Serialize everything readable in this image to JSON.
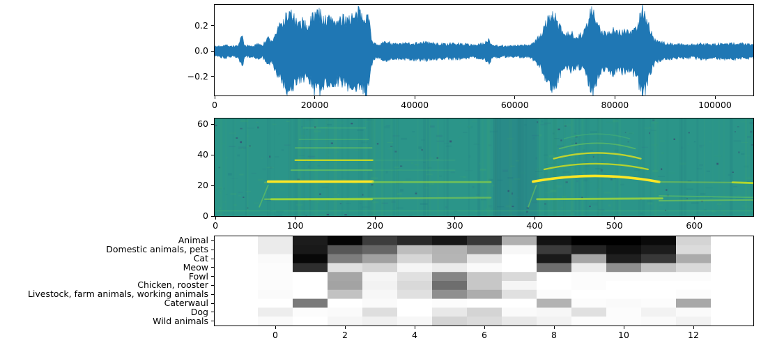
{
  "figure": {
    "background": "#ffffff",
    "description": "Three stacked audio-analysis panels: raw waveform, STFT spectrogram, and animal-sound class probability heatmap"
  },
  "colors": {
    "waveform_line": "#1f77b4",
    "axis_text": "#000000",
    "spectrogram_background": "#2b9589",
    "spectrogram_colormap": "viridis",
    "heatmap_colormap": "gray_r"
  },
  "chart_data": [
    {
      "id": "waveform",
      "type": "line",
      "title": "",
      "xlabel": "",
      "ylabel": "",
      "x_range": [
        0,
        107660
      ],
      "y_range": [
        -0.349,
        0.364
      ],
      "grid": false,
      "legend": "none",
      "line_color": "#1f77b4",
      "xticks": [
        {
          "v": 0,
          "label": "0"
        },
        {
          "v": 20000,
          "label": "20000"
        },
        {
          "v": 40000,
          "label": "40000"
        },
        {
          "v": 60000,
          "label": "60000"
        },
        {
          "v": 80000,
          "label": "80000"
        },
        {
          "v": 100000,
          "label": "100000"
        }
      ],
      "yticks": [
        {
          "v": 0.2,
          "label": "0.2"
        },
        {
          "v": 0.0,
          "label": "0.0"
        },
        {
          "v": -0.2,
          "label": "−0.2"
        }
      ],
      "envelope": [
        [
          0,
          0.035
        ],
        [
          2000,
          0.05
        ],
        [
          3500,
          0.04
        ],
        [
          4800,
          0.045
        ],
        [
          5500,
          0.13
        ],
        [
          5900,
          0.045
        ],
        [
          7500,
          0.04
        ],
        [
          9000,
          0.06
        ],
        [
          9600,
          0.05
        ],
        [
          10800,
          0.11
        ],
        [
          11400,
          0.07
        ],
        [
          12000,
          0.13
        ],
        [
          12800,
          0.19
        ],
        [
          13600,
          0.23
        ],
        [
          14600,
          0.29
        ],
        [
          15300,
          0.3
        ],
        [
          16000,
          0.25
        ],
        [
          16800,
          0.2
        ],
        [
          17600,
          0.24
        ],
        [
          18400,
          0.19
        ],
        [
          19200,
          0.25
        ],
        [
          20000,
          0.3
        ],
        [
          20800,
          0.31
        ],
        [
          21600,
          0.27
        ],
        [
          22400,
          0.24
        ],
        [
          23200,
          0.27
        ],
        [
          24000,
          0.25
        ],
        [
          24800,
          0.23
        ],
        [
          25600,
          0.25
        ],
        [
          26400,
          0.26
        ],
        [
          27200,
          0.28
        ],
        [
          28000,
          0.26
        ],
        [
          28800,
          0.31
        ],
        [
          29600,
          0.28
        ],
        [
          30300,
          0.31
        ],
        [
          30900,
          0.24
        ],
        [
          31300,
          0.12
        ],
        [
          31800,
          0.06
        ],
        [
          33000,
          0.055
        ],
        [
          34500,
          0.075
        ],
        [
          36000,
          0.055
        ],
        [
          38000,
          0.06
        ],
        [
          40000,
          0.065
        ],
        [
          42000,
          0.07
        ],
        [
          44000,
          0.06
        ],
        [
          46000,
          0.055
        ],
        [
          48000,
          0.06
        ],
        [
          50000,
          0.055
        ],
        [
          52000,
          0.05
        ],
        [
          54000,
          0.06
        ],
        [
          54800,
          0.1
        ],
        [
          55400,
          0.05
        ],
        [
          57000,
          0.045
        ],
        [
          59000,
          0.04
        ],
        [
          61000,
          0.045
        ],
        [
          63000,
          0.05
        ],
        [
          64200,
          0.08
        ],
        [
          65200,
          0.13
        ],
        [
          66200,
          0.22
        ],
        [
          67300,
          0.3
        ],
        [
          68000,
          0.27
        ],
        [
          68900,
          0.19
        ],
        [
          70000,
          0.12
        ],
        [
          71200,
          0.145
        ],
        [
          72400,
          0.12
        ],
        [
          73600,
          0.14
        ],
        [
          74500,
          0.21
        ],
        [
          75400,
          0.335
        ],
        [
          76200,
          0.24
        ],
        [
          77200,
          0.15
        ],
        [
          78400,
          0.155
        ],
        [
          79600,
          0.17
        ],
        [
          80800,
          0.155
        ],
        [
          82000,
          0.165
        ],
        [
          83200,
          0.15
        ],
        [
          84300,
          0.19
        ],
        [
          85500,
          0.335
        ],
        [
          86300,
          0.27
        ],
        [
          87100,
          0.16
        ],
        [
          87900,
          0.09
        ],
        [
          89000,
          0.07
        ],
        [
          90500,
          0.06
        ],
        [
          92500,
          0.055
        ],
        [
          95000,
          0.05
        ],
        [
          97500,
          0.06
        ],
        [
          100000,
          0.055
        ],
        [
          102500,
          0.06
        ],
        [
          105000,
          0.06
        ],
        [
          107660,
          0.05
        ]
      ]
    },
    {
      "id": "spectrogram",
      "type": "heatmap",
      "title": "",
      "xlabel": "",
      "ylabel": "",
      "colormap": "viridis",
      "x_range": [
        -1,
        674
      ],
      "y_range": [
        0,
        63.7
      ],
      "xticks": [
        {
          "v": 0,
          "label": "0"
        },
        {
          "v": 100,
          "label": "100"
        },
        {
          "v": 200,
          "label": "200"
        },
        {
          "v": 300,
          "label": "300"
        },
        {
          "v": 400,
          "label": "400"
        },
        {
          "v": 500,
          "label": "500"
        },
        {
          "v": 600,
          "label": "600"
        }
      ],
      "yticks": [
        {
          "v": 0,
          "label": "0"
        },
        {
          "v": 20,
          "label": "20"
        },
        {
          "v": 40,
          "label": "40"
        },
        {
          "v": 60,
          "label": "60"
        }
      ],
      "silent_gap": {
        "x0": 348,
        "x1": 403
      },
      "ridges": [
        {
          "x0": 62,
          "x1": 345,
          "y0": 11,
          "y1": 12,
          "w": 2.4,
          "c": "#8ed645",
          "o": 0.55
        },
        {
          "x0": 70,
          "x1": 196,
          "y0": 11,
          "y1": 11,
          "w": 2.8,
          "c": "#a8db34",
          "o": 0.85
        },
        {
          "x0": 62,
          "x1": 345,
          "y0": 22,
          "y1": 22,
          "w": 2.2,
          "c": "#a8dc32",
          "o": 0.3
        },
        {
          "x0": 66,
          "x1": 197,
          "y0": 22.5,
          "y1": 22.5,
          "w": 3.6,
          "c": "#fde725",
          "o": 1
        },
        {
          "x0": 95,
          "x1": 196,
          "y0": 30,
          "y1": 30,
          "w": 2.0,
          "c": "#7ad151",
          "o": 0.6
        },
        {
          "x0": 100,
          "x1": 197,
          "y0": 36.5,
          "y1": 36.5,
          "w": 2.4,
          "c": "#d8e219",
          "o": 0.85
        },
        {
          "x0": 100,
          "x1": 196,
          "y0": 44.5,
          "y1": 44.5,
          "w": 1.8,
          "c": "#7ad151",
          "o": 0.5
        },
        {
          "x0": 105,
          "x1": 192,
          "y0": 50,
          "y1": 50,
          "w": 1.6,
          "c": "#5ec962",
          "o": 0.4
        },
        {
          "x0": 110,
          "x1": 188,
          "y0": 57.5,
          "y1": 57.5,
          "w": 1.6,
          "c": "#5ec962",
          "o": 0.32
        },
        {
          "x0": 197,
          "x1": 345,
          "y0": 22.3,
          "y1": 22.3,
          "w": 2.6,
          "c": "#8ed645",
          "o": 0.55
        },
        {
          "x0": 197,
          "x1": 300,
          "y0": 30,
          "y1": 30,
          "w": 1.5,
          "c": "#5ec962",
          "o": 0.2
        },
        {
          "x0": 197,
          "x1": 300,
          "y0": 36.5,
          "y1": 36.5,
          "w": 1.5,
          "c": "#5ec962",
          "o": 0.18
        },
        {
          "x0": 55,
          "x1": 66,
          "y0": 6,
          "y1": 20,
          "w": 1.8,
          "c": "#7ad151",
          "o": 0.5
        },
        {
          "x0": 392,
          "x1": 402,
          "y0": 6,
          "y1": 20,
          "w": 1.8,
          "c": "#7ad151",
          "o": 0.5
        },
        {
          "x0": 398,
          "x1": 556,
          "y0": 22.5,
          "ym": 26.2,
          "y1": 22.3,
          "w": 3.6,
          "c": "#fde725",
          "o": 1
        },
        {
          "x0": 403,
          "x1": 560,
          "y0": 11,
          "y1": 11.5,
          "w": 2.8,
          "c": "#a8db34",
          "o": 0.8
        },
        {
          "x0": 412,
          "x1": 542,
          "y0": 30.5,
          "ym": 34.2,
          "y1": 30.5,
          "w": 2.3,
          "c": "#d8e219",
          "o": 0.8
        },
        {
          "x0": 424,
          "x1": 533,
          "y0": 37.5,
          "ym": 41.2,
          "y1": 37.5,
          "w": 2.3,
          "c": "#e5e41c",
          "o": 0.8
        },
        {
          "x0": 431,
          "x1": 526,
          "y0": 44,
          "ym": 47.6,
          "y1": 44,
          "w": 1.8,
          "c": "#7ad151",
          "o": 0.5
        },
        {
          "x0": 437,
          "x1": 519,
          "y0": 50.5,
          "ym": 53.6,
          "y1": 50.5,
          "w": 1.6,
          "c": "#5ec962",
          "o": 0.32
        },
        {
          "x0": 556,
          "x1": 674,
          "y0": 22.3,
          "y1": 21.8,
          "w": 2.2,
          "c": "#a8dc32",
          "o": 0.4
        },
        {
          "x0": 648,
          "x1": 674,
          "y0": 22,
          "y1": 21.5,
          "w": 2.8,
          "c": "#c8e020",
          "o": 0.8
        },
        {
          "x0": 556,
          "x1": 674,
          "y0": 13.2,
          "y1": 12.2,
          "w": 1.8,
          "c": "#6ece58",
          "o": 0.5
        },
        {
          "x0": 556,
          "x1": 674,
          "y0": 10,
          "y1": 10.5,
          "w": 2.0,
          "c": "#8ed645",
          "o": 0.55
        },
        {
          "x0": 0,
          "x1": 674,
          "y0": 3.5,
          "y1": 3.5,
          "w": 2.5,
          "c": "#4ac16d",
          "o": 0.2
        }
      ]
    },
    {
      "id": "classification",
      "type": "heatmap",
      "title": "",
      "xlabel": "",
      "ylabel": "",
      "colormap": "gray_r",
      "value_scale": "0 = white (low score), 1 = black (high score)",
      "x_range": [
        -1.74,
        13.72
      ],
      "columns": [
        0,
        1,
        2,
        3,
        4,
        5,
        6,
        7,
        8,
        9,
        10,
        11,
        12,
        13
      ],
      "xticks": [
        {
          "v": 0,
          "label": "0"
        },
        {
          "v": 2,
          "label": "2"
        },
        {
          "v": 4,
          "label": "4"
        },
        {
          "v": 6,
          "label": "6"
        },
        {
          "v": 8,
          "label": "8"
        },
        {
          "v": 10,
          "label": "10"
        },
        {
          "v": 12,
          "label": "12"
        }
      ],
      "rows": [
        {
          "label": "Animal",
          "values": [
            0.08,
            0.89,
            0.98,
            0.76,
            0.84,
            0.91,
            0.78,
            0.31,
            0.93,
            1.0,
            1.0,
            0.96,
            0.17,
            0.0
          ]
        },
        {
          "label": "Domestic animals, pets",
          "values": [
            0.08,
            0.9,
            0.66,
            0.6,
            0.26,
            0.3,
            0.42,
            0.03,
            0.77,
            0.86,
            0.94,
            0.89,
            0.14,
            0.0
          ]
        },
        {
          "label": "Cat",
          "values": [
            0.02,
            0.97,
            0.51,
            0.37,
            0.16,
            0.29,
            0.1,
            0.0,
            0.9,
            0.35,
            0.88,
            0.78,
            0.33,
            0.0
          ]
        },
        {
          "label": "Meow",
          "values": [
            0.01,
            0.82,
            0.12,
            0.17,
            0.04,
            0.08,
            0.02,
            0.0,
            0.57,
            0.08,
            0.44,
            0.24,
            0.15,
            0.0
          ]
        },
        {
          "label": "Fowl",
          "values": [
            0.01,
            0.0,
            0.35,
            0.04,
            0.12,
            0.48,
            0.22,
            0.15,
            0.0,
            0.01,
            0.01,
            0.01,
            0.01,
            0.0
          ]
        },
        {
          "label": "Chicken, rooster",
          "values": [
            0.01,
            0.0,
            0.36,
            0.05,
            0.15,
            0.57,
            0.22,
            0.04,
            0.0,
            0.01,
            0.0,
            0.0,
            0.0,
            0.0
          ]
        },
        {
          "label": "Livestock, farm animals, working animals",
          "values": [
            0.02,
            0.0,
            0.24,
            0.03,
            0.12,
            0.44,
            0.32,
            0.12,
            0.01,
            0.0,
            0.0,
            0.0,
            0.01,
            0.0
          ]
        },
        {
          "label": "Caterwaul",
          "values": [
            0.0,
            0.52,
            0.0,
            0.02,
            0.0,
            0.01,
            0.0,
            0.0,
            0.3,
            0.01,
            0.02,
            0.01,
            0.34,
            0.0
          ]
        },
        {
          "label": "Dog",
          "values": [
            0.07,
            0.01,
            0.02,
            0.13,
            0.0,
            0.09,
            0.17,
            0.02,
            0.03,
            0.12,
            0.01,
            0.05,
            0.02,
            0.0
          ]
        },
        {
          "label": "Wild animals",
          "values": [
            0.02,
            0.0,
            0.04,
            0.06,
            0.03,
            0.17,
            0.14,
            0.09,
            0.05,
            0.01,
            0.01,
            0.02,
            0.05,
            0.0
          ]
        }
      ]
    }
  ]
}
